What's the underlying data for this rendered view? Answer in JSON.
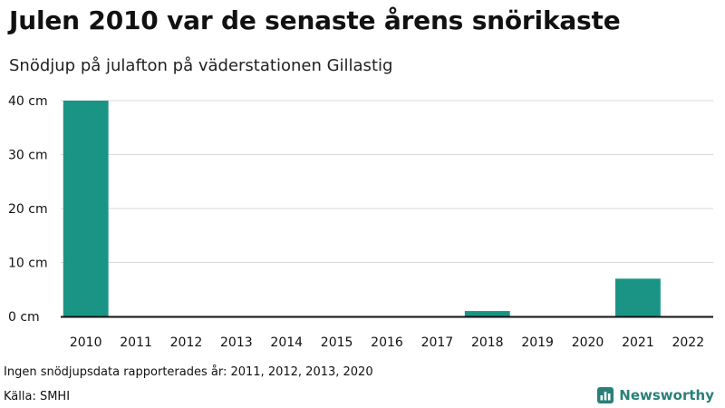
{
  "header": {
    "title": "Julen 2010 var de senaste årens snörikaste",
    "subtitle": "Snödjup på julafton på väderstationen Gillastig"
  },
  "footer": {
    "note": "Ingen snödjupsdata rapporterades år: 2011, 2012, 2013, 2020",
    "source": "Källa: SMHI",
    "brand": "Newsworthy",
    "brand_icon": "newsworthy-logo-icon"
  },
  "colors": {
    "bar": "#1a9585",
    "grid": "#d9d9d9",
    "axis": "#111111",
    "brand": "#2a7f79"
  },
  "chart_data": {
    "type": "bar",
    "categories": [
      "2010",
      "2011",
      "2012",
      "2013",
      "2014",
      "2015",
      "2016",
      "2017",
      "2018",
      "2019",
      "2020",
      "2021",
      "2022"
    ],
    "values": [
      40,
      0,
      0,
      0,
      0,
      0,
      0,
      0,
      1,
      0,
      0,
      7,
      0
    ],
    "ylim": [
      0,
      40
    ],
    "yticks": [
      0,
      10,
      20,
      30,
      40
    ],
    "ytick_labels": [
      "0 cm",
      "10 cm",
      "20 cm",
      "30 cm",
      "40 cm"
    ],
    "grid": true
  }
}
